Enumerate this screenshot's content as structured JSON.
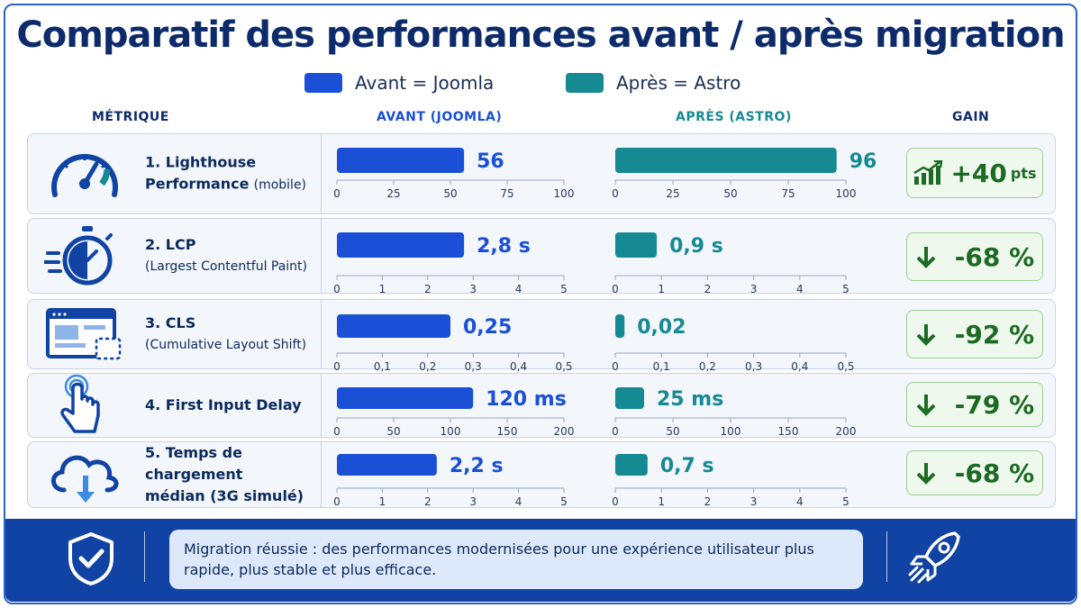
{
  "title": "Comparatif des performances avant / après migration",
  "legend": [
    {
      "label": "Avant = Joomla",
      "color": "#1a4fd6"
    },
    {
      "label": "Après = Astro",
      "color": "#168a93"
    }
  ],
  "columns": {
    "metric": "MÉTRIQUE",
    "before": "AVANT (JOOMLA)",
    "after": "APRÈS (ASTRO)",
    "gain": "GAIN"
  },
  "colors": {
    "before": "#1a4fd6",
    "after": "#168a93",
    "gain": "#1d6a24"
  },
  "chart_data": {
    "type": "bar",
    "series": [
      {
        "name": "Avant = Joomla"
      },
      {
        "name": "Après = Astro"
      }
    ],
    "rows": [
      {
        "label": "1. Lighthouse",
        "label2": "Performance",
        "sub": "(mobile)",
        "icon": "speedometer-icon",
        "before": 56,
        "before_label": "56",
        "after": 96,
        "after_label": "96",
        "xmax": 100,
        "ticks": [
          0,
          25,
          50,
          75,
          100
        ],
        "tick_labels": [
          "0",
          "25",
          "50",
          "75",
          "100"
        ],
        "gain": "+40",
        "gain_unit": "pts",
        "gain_icon": "trend-up-icon"
      },
      {
        "label": "2. LCP",
        "label2": "",
        "sub": "(Largest Contentful Paint)",
        "icon": "stopwatch-icon",
        "before": 2.8,
        "before_label": "2,8 s",
        "after": 0.9,
        "after_label": "0,9 s",
        "xmax": 5,
        "ticks": [
          0,
          1,
          2,
          3,
          4,
          5
        ],
        "tick_labels": [
          "0",
          "1",
          "2",
          "3",
          "4",
          "5"
        ],
        "gain": "-68 %",
        "gain_unit": "",
        "gain_icon": "arrow-down-icon"
      },
      {
        "label": "3. CLS",
        "label2": "",
        "sub": "(Cumulative Layout Shift)",
        "icon": "layout-shift-icon",
        "before": 0.25,
        "before_label": "0,25",
        "after": 0.02,
        "after_label": "0,02",
        "xmax": 0.5,
        "ticks": [
          0,
          0.1,
          0.2,
          0.3,
          0.4,
          0.5
        ],
        "tick_labels": [
          "0",
          "0,1",
          "0,2",
          "0,3",
          "0,4",
          "0,5"
        ],
        "gain": "-92 %",
        "gain_unit": "",
        "gain_icon": "arrow-down-icon"
      },
      {
        "label": "4. First Input Delay",
        "label2": "",
        "sub": "",
        "icon": "pointer-tap-icon",
        "before": 120,
        "before_label": "120 ms",
        "after": 25,
        "after_label": "25 ms",
        "xmax": 200,
        "ticks": [
          0,
          50,
          100,
          150,
          200
        ],
        "tick_labels": [
          "0",
          "50",
          "100",
          "150",
          "200"
        ],
        "gain": "-79 %",
        "gain_unit": "",
        "gain_icon": "arrow-down-icon"
      },
      {
        "label": "5. Temps de chargement",
        "label2": "médian (3G simulé)",
        "sub": "",
        "icon": "cloud-download-icon",
        "before": 2.2,
        "before_label": "2,2 s",
        "after": 0.7,
        "after_label": "0,7 s",
        "xmax": 5,
        "ticks": [
          0,
          1,
          2,
          3,
          4,
          5
        ],
        "tick_labels": [
          "0",
          "1",
          "2",
          "3",
          "4",
          "5"
        ],
        "gain": "-68 %",
        "gain_unit": "",
        "gain_icon": "arrow-down-icon"
      }
    ]
  },
  "footer": {
    "message": "Migration réussie : des performances modernisées pour une expérience utilisateur plus rapide, plus stable et plus efficace.",
    "left_icon": "shield-check-icon",
    "right_icon": "rocket-icon"
  }
}
